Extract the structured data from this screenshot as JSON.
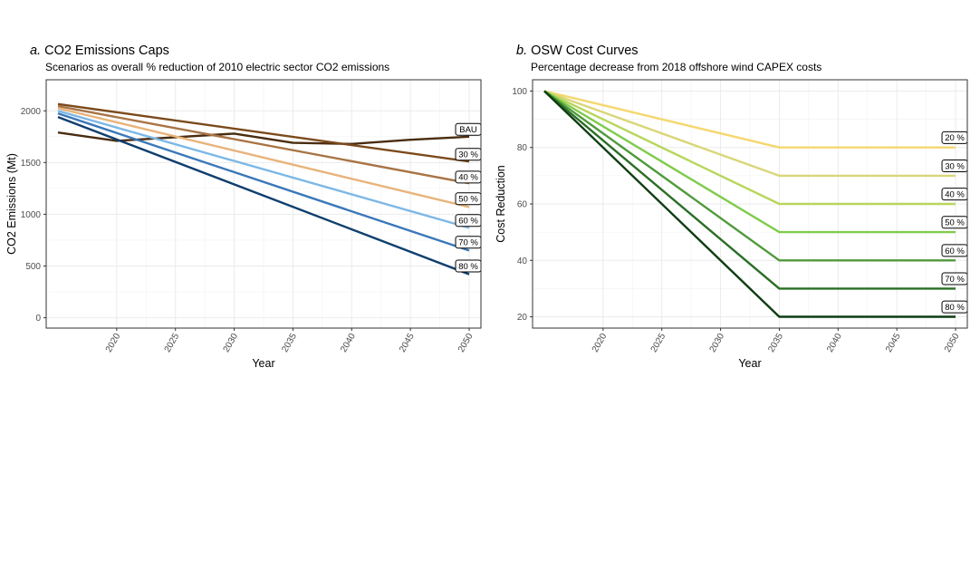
{
  "chart_data": [
    {
      "type": "line",
      "panel_letter": "a.",
      "title": "CO2 Emissions Caps",
      "subtitle": "Scenarios as overall % reduction of 2010 electric sector CO2 emissions",
      "xlabel": "Year",
      "ylabel": "CO2 Emissions (Mt)",
      "xlim": [
        2014,
        2051
      ],
      "ylim": [
        -100,
        2300
      ],
      "xticks": [
        2020,
        2025,
        2030,
        2035,
        2040,
        2045,
        2050
      ],
      "yticks": [
        0,
        500,
        1000,
        1500,
        2000
      ],
      "grid": true,
      "series": [
        {
          "name": "BAU",
          "color": "#4a2c0f",
          "points": [
            [
              2015,
              1790
            ],
            [
              2020,
              1710
            ],
            [
              2030,
              1780
            ],
            [
              2035,
              1690
            ],
            [
              2040,
              1680
            ],
            [
              2045,
              1720
            ],
            [
              2050,
              1750
            ]
          ]
        },
        {
          "name": "30 %",
          "color": "#7b4a1b",
          "points": [
            [
              2015,
              2065
            ],
            [
              2050,
              1510
            ]
          ]
        },
        {
          "name": "40 %",
          "color": "#a87445",
          "points": [
            [
              2015,
              2045
            ],
            [
              2050,
              1300
            ]
          ]
        },
        {
          "name": "50 %",
          "color": "#e8b47c",
          "points": [
            [
              2015,
              2025
            ],
            [
              2050,
              1070
            ]
          ]
        },
        {
          "name": "60 %",
          "color": "#7db8e6",
          "points": [
            [
              2015,
              2000
            ],
            [
              2050,
              870
            ]
          ]
        },
        {
          "name": "70 %",
          "color": "#3a78b8",
          "points": [
            [
              2015,
              1975
            ],
            [
              2050,
              650
            ]
          ]
        },
        {
          "name": "80 %",
          "color": "#0e3f6e",
          "points": [
            [
              2015,
              1940
            ],
            [
              2050,
              420
            ]
          ]
        }
      ],
      "label_y": [
        1820,
        1580,
        1360,
        1150,
        940,
        730,
        500
      ]
    },
    {
      "type": "line",
      "panel_letter": "b.",
      "title": "OSW Cost Curves",
      "subtitle": "Percentage decrease from 2018 offshore wind CAPEX costs",
      "xlabel": "Year",
      "ylabel": "Cost Reduction",
      "xlim": [
        2014,
        2051
      ],
      "ylim": [
        16,
        104
      ],
      "xticks": [
        2020,
        2025,
        2030,
        2035,
        2040,
        2045,
        2050
      ],
      "yticks": [
        20,
        40,
        60,
        80,
        100
      ],
      "grid": true,
      "series": [
        {
          "name": "20 %",
          "color": "#f5d76e",
          "points": [
            [
              2015,
              100
            ],
            [
              2035,
              80
            ],
            [
              2050,
              80
            ]
          ]
        },
        {
          "name": "30 %",
          "color": "#d9d678",
          "points": [
            [
              2015,
              100
            ],
            [
              2035,
              70
            ],
            [
              2050,
              70
            ]
          ]
        },
        {
          "name": "40 %",
          "color": "#b8d65c",
          "points": [
            [
              2015,
              100
            ],
            [
              2035,
              60
            ],
            [
              2050,
              60
            ]
          ]
        },
        {
          "name": "50 %",
          "color": "#7fcb4c",
          "points": [
            [
              2015,
              100
            ],
            [
              2035,
              50
            ],
            [
              2050,
              50
            ]
          ]
        },
        {
          "name": "60 %",
          "color": "#4f9a3a",
          "points": [
            [
              2015,
              100
            ],
            [
              2035,
              40
            ],
            [
              2050,
              40
            ]
          ]
        },
        {
          "name": "70 %",
          "color": "#2a6e25",
          "points": [
            [
              2015,
              100
            ],
            [
              2035,
              30
            ],
            [
              2050,
              30
            ]
          ]
        },
        {
          "name": "80 %",
          "color": "#0f3d12",
          "points": [
            [
              2015,
              100
            ],
            [
              2035,
              20
            ],
            [
              2050,
              20
            ]
          ]
        }
      ],
      "label_y": [
        83.5,
        73.5,
        63.5,
        53.5,
        43.5,
        33.5,
        23.5
      ]
    }
  ]
}
